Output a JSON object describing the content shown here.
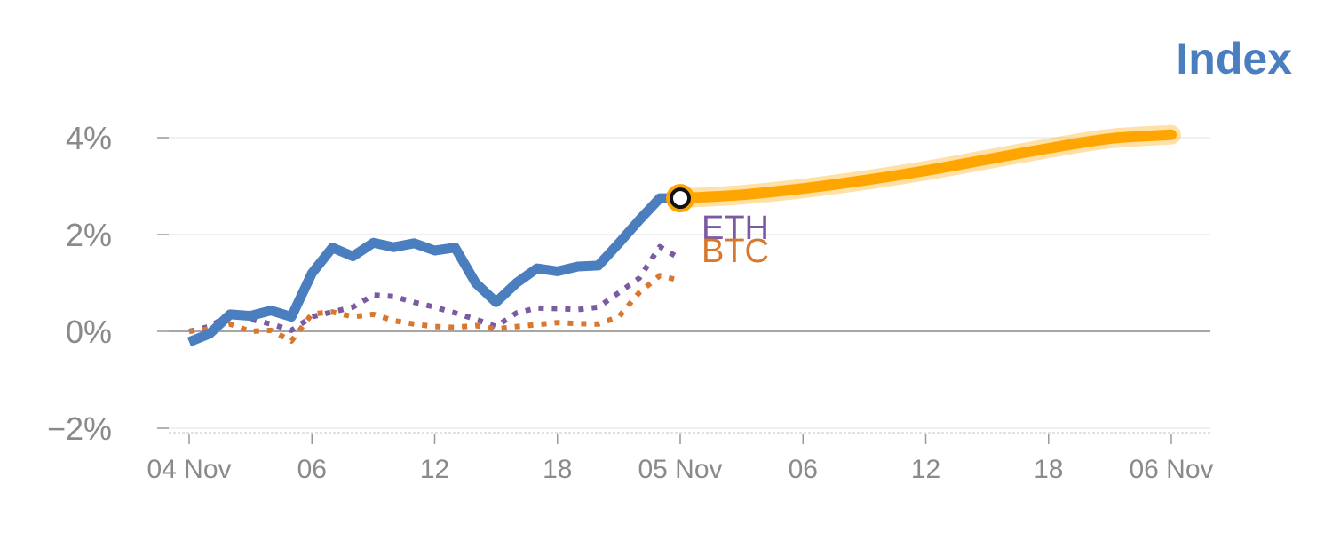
{
  "chart_data": {
    "type": "line",
    "title": "Index",
    "xlabel": "",
    "ylabel": "",
    "x_tick_labels": [
      "04 Nov",
      "06",
      "12",
      "18",
      "05 Nov",
      "06",
      "12",
      "18",
      "06 Nov"
    ],
    "x_tick_hours": [
      0,
      6,
      12,
      18,
      24,
      30,
      36,
      42,
      48
    ],
    "y_ticks": [
      -2,
      0,
      2,
      4
    ],
    "y_tick_labels": [
      "−2%",
      "0%",
      "2%",
      "4%"
    ],
    "ylim": [
      -2.1,
      4.5
    ],
    "xlim_hours": [
      0,
      48
    ],
    "grid": true,
    "series": [
      {
        "name": "",
        "color": "#4a7ebf",
        "style": "solid",
        "x_hours": [
          0,
          1,
          2,
          3,
          4,
          5,
          6,
          7,
          8,
          9,
          10,
          11,
          12,
          13,
          14,
          15,
          16,
          17,
          18,
          19,
          20,
          21,
          22,
          23,
          24
        ],
        "values": [
          -0.22,
          -0.05,
          0.35,
          0.32,
          0.43,
          0.3,
          1.2,
          1.73,
          1.55,
          1.83,
          1.74,
          1.82,
          1.67,
          1.73,
          1.0,
          0.6,
          1.0,
          1.3,
          1.24,
          1.34,
          1.36,
          1.82,
          2.3,
          2.75,
          2.75
        ]
      },
      {
        "name": "ETH",
        "color": "#7a5aa0",
        "style": "dotted",
        "x_hours": [
          0,
          1,
          2,
          3,
          4,
          5,
          6,
          7,
          8,
          9,
          10,
          11,
          12,
          13,
          14,
          15,
          16,
          17,
          18,
          19,
          20,
          21,
          22,
          23,
          24
        ],
        "values": [
          0.0,
          0.1,
          0.35,
          0.25,
          0.15,
          0.02,
          0.3,
          0.4,
          0.5,
          0.75,
          0.72,
          0.6,
          0.5,
          0.38,
          0.25,
          0.1,
          0.38,
          0.48,
          0.47,
          0.45,
          0.5,
          0.8,
          1.1,
          1.75,
          1.5
        ]
      },
      {
        "name": "BTC",
        "color": "#d9772e",
        "style": "dotted",
        "x_hours": [
          0,
          1,
          2,
          3,
          4,
          5,
          6,
          7,
          8,
          9,
          10,
          11,
          12,
          13,
          14,
          15,
          16,
          17,
          18,
          19,
          20,
          21,
          22,
          23,
          24
        ],
        "values": [
          0.0,
          0.05,
          0.15,
          0.0,
          0.02,
          -0.2,
          0.36,
          0.4,
          0.3,
          0.35,
          0.22,
          0.15,
          0.1,
          0.08,
          0.12,
          0.05,
          0.1,
          0.14,
          0.18,
          0.16,
          0.15,
          0.3,
          0.8,
          1.15,
          1.05
        ]
      },
      {
        "name": "",
        "color": "#ffa500",
        "style": "forecast",
        "x_hours": [
          24,
          27,
          30,
          33,
          36,
          39,
          42,
          45,
          48
        ],
        "values": [
          2.75,
          2.82,
          2.95,
          3.12,
          3.32,
          3.55,
          3.78,
          3.98,
          4.06
        ]
      }
    ],
    "marker": {
      "x_hour": 24,
      "value": 2.75,
      "color": "#ffa500"
    },
    "colors": {
      "title": "#4a7ebf",
      "tick_text": "#8a8a8a",
      "grid": "#e6e6e6",
      "zero_line": "#888888"
    }
  }
}
